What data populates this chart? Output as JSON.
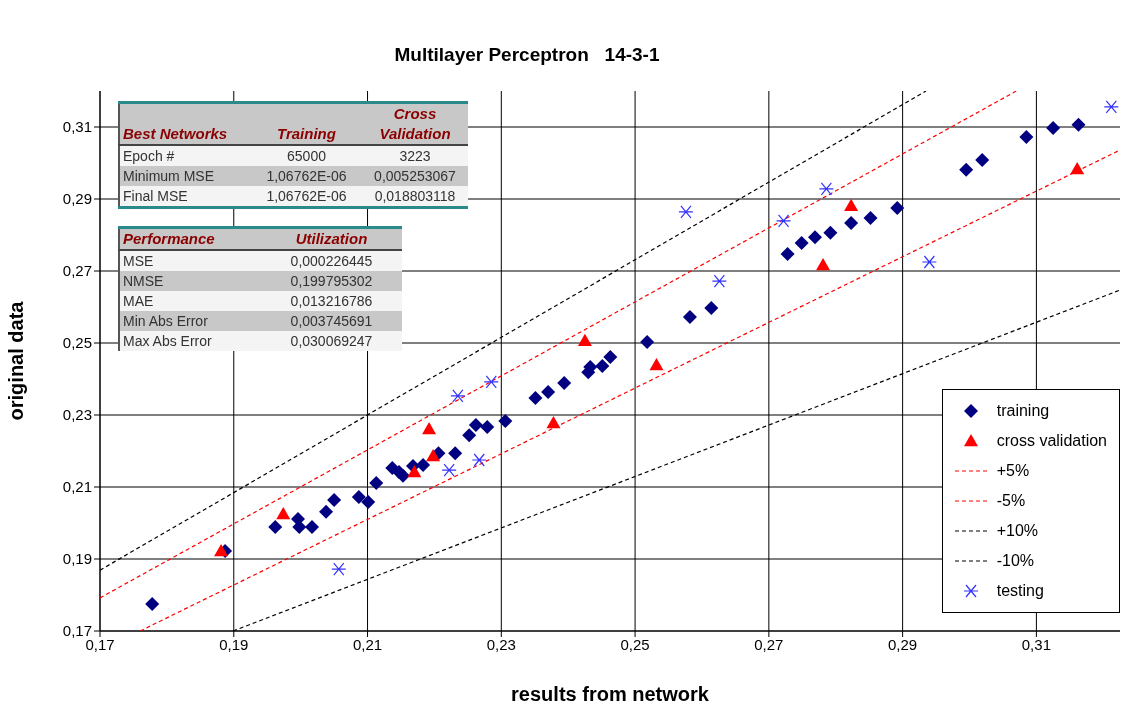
{
  "chart_data": {
    "type": "scatter",
    "title": "Multilayer Perceptron   14-3-1",
    "xlabel": "results from network",
    "ylabel": "original data",
    "xlim": [
      0.17,
      0.3225
    ],
    "ylim": [
      0.17,
      0.32
    ],
    "xticks": [
      {
        "value": 0.17,
        "label": "0,17"
      },
      {
        "value": 0.19,
        "label": "0,19"
      },
      {
        "value": 0.21,
        "label": "0,21"
      },
      {
        "value": 0.23,
        "label": "0,23"
      },
      {
        "value": 0.25,
        "label": "0,25"
      },
      {
        "value": 0.27,
        "label": "0,27"
      },
      {
        "value": 0.29,
        "label": "0,29"
      },
      {
        "value": 0.31,
        "label": "0,31"
      }
    ],
    "yticks": [
      {
        "value": 0.17,
        "label": "0,17"
      },
      {
        "value": 0.19,
        "label": "0,19"
      },
      {
        "value": 0.21,
        "label": "0,21"
      },
      {
        "value": 0.23,
        "label": "0,23"
      },
      {
        "value": 0.25,
        "label": "0,25"
      },
      {
        "value": 0.27,
        "label": "0,27"
      },
      {
        "value": 0.29,
        "label": "0,29"
      },
      {
        "value": 0.31,
        "label": "0,31"
      }
    ],
    "grid": true,
    "legend": "bottom right",
    "series": [
      {
        "name": "training",
        "marker": "diamond",
        "color": "#000080",
        "x": [
          0.1778,
          0.1887,
          0.1962,
          0.1996,
          0.1998,
          0.2017,
          0.2038,
          0.205,
          0.2087,
          0.2101,
          0.2113,
          0.2137,
          0.2147,
          0.2153,
          0.2168,
          0.2183,
          0.2206,
          0.2231,
          0.2252,
          0.2262,
          0.2279,
          0.2306,
          0.2351,
          0.237,
          0.2394,
          0.243,
          0.2433,
          0.2451,
          0.2463,
          0.2518,
          0.2582,
          0.2614,
          0.2728,
          0.2749,
          0.2769,
          0.2792,
          0.2823,
          0.2852,
          0.2892,
          0.2995,
          0.3019,
          0.3085,
          0.3125,
          0.3163
        ],
        "values": [
          0.1775,
          0.1922,
          0.1989,
          0.2011,
          0.1989,
          0.1989,
          0.2031,
          0.2064,
          0.2072,
          0.2058,
          0.2111,
          0.2153,
          0.2142,
          0.2131,
          0.2158,
          0.2161,
          0.2194,
          0.2194,
          0.2244,
          0.2272,
          0.2267,
          0.2283,
          0.2347,
          0.2364,
          0.2389,
          0.2419,
          0.2433,
          0.2436,
          0.2461,
          0.2503,
          0.2572,
          0.2597,
          0.2747,
          0.2778,
          0.2794,
          0.2806,
          0.2833,
          0.2847,
          0.2875,
          0.2981,
          0.3008,
          0.3072,
          0.3097,
          0.3106
        ]
      },
      {
        "name": "cross validation",
        "marker": "triangle",
        "color": "#ff0000",
        "x": [
          0.1881,
          0.1974,
          0.217,
          0.2192,
          0.2198,
          0.2378,
          0.2425,
          0.2532,
          0.2781,
          0.2823,
          0.3161
        ],
        "values": [
          0.1922,
          0.2025,
          0.2142,
          0.2261,
          0.2186,
          0.2278,
          0.2506,
          0.2439,
          0.2717,
          0.2881,
          0.2983
        ]
      },
      {
        "name": "+5%",
        "type": "line",
        "marker": "none",
        "line_style": "dashed",
        "color": "#ff0000",
        "x": [
          0.17,
          0.307
        ],
        "values": [
          0.1792,
          0.32
        ]
      },
      {
        "name": "-5%",
        "type": "line",
        "marker": "none",
        "line_style": "dashed",
        "color": "#ff0000",
        "x": [
          0.176,
          0.3225
        ],
        "values": [
          0.17,
          0.3036
        ]
      },
      {
        "name": "+10%",
        "type": "line",
        "marker": "none",
        "line_style": "dashed",
        "color": "#000000",
        "x": [
          0.17,
          0.2935
        ],
        "values": [
          0.1869,
          0.32
        ]
      },
      {
        "name": "-10%",
        "type": "line",
        "marker": "none",
        "line_style": "dashed",
        "color": "#000000",
        "x": [
          0.1899,
          0.3225
        ],
        "values": [
          0.17,
          0.2647
        ]
      },
      {
        "name": "testing",
        "marker": "cross",
        "color": "#3333ff",
        "x": [
          0.2057,
          0.2222,
          0.2235,
          0.2267,
          0.2285,
          0.2576,
          0.2626,
          0.2722,
          0.2786,
          0.294,
          0.3212
        ],
        "values": [
          0.1872,
          0.2147,
          0.2353,
          0.2175,
          0.2392,
          0.2864,
          0.2672,
          0.2839,
          0.2928,
          0.2725,
          0.3156
        ]
      }
    ],
    "annotations": [
      "Best Networks",
      "Training",
      "Cross Validation",
      "Epoch #",
      "65000",
      "3223",
      "Minimum MSE",
      "1,06762E-06",
      "0,005253067",
      "Final MSE",
      "1,06762E-06",
      "0,018803118",
      "Performance",
      "Utilization",
      "MSE",
      "0,000226445",
      "NMSE",
      "0,199795302",
      "MAE",
      "0,013216786",
      "Min Abs Error",
      "0,003745691",
      "Max Abs Error",
      "0,030069247"
    ]
  }
}
